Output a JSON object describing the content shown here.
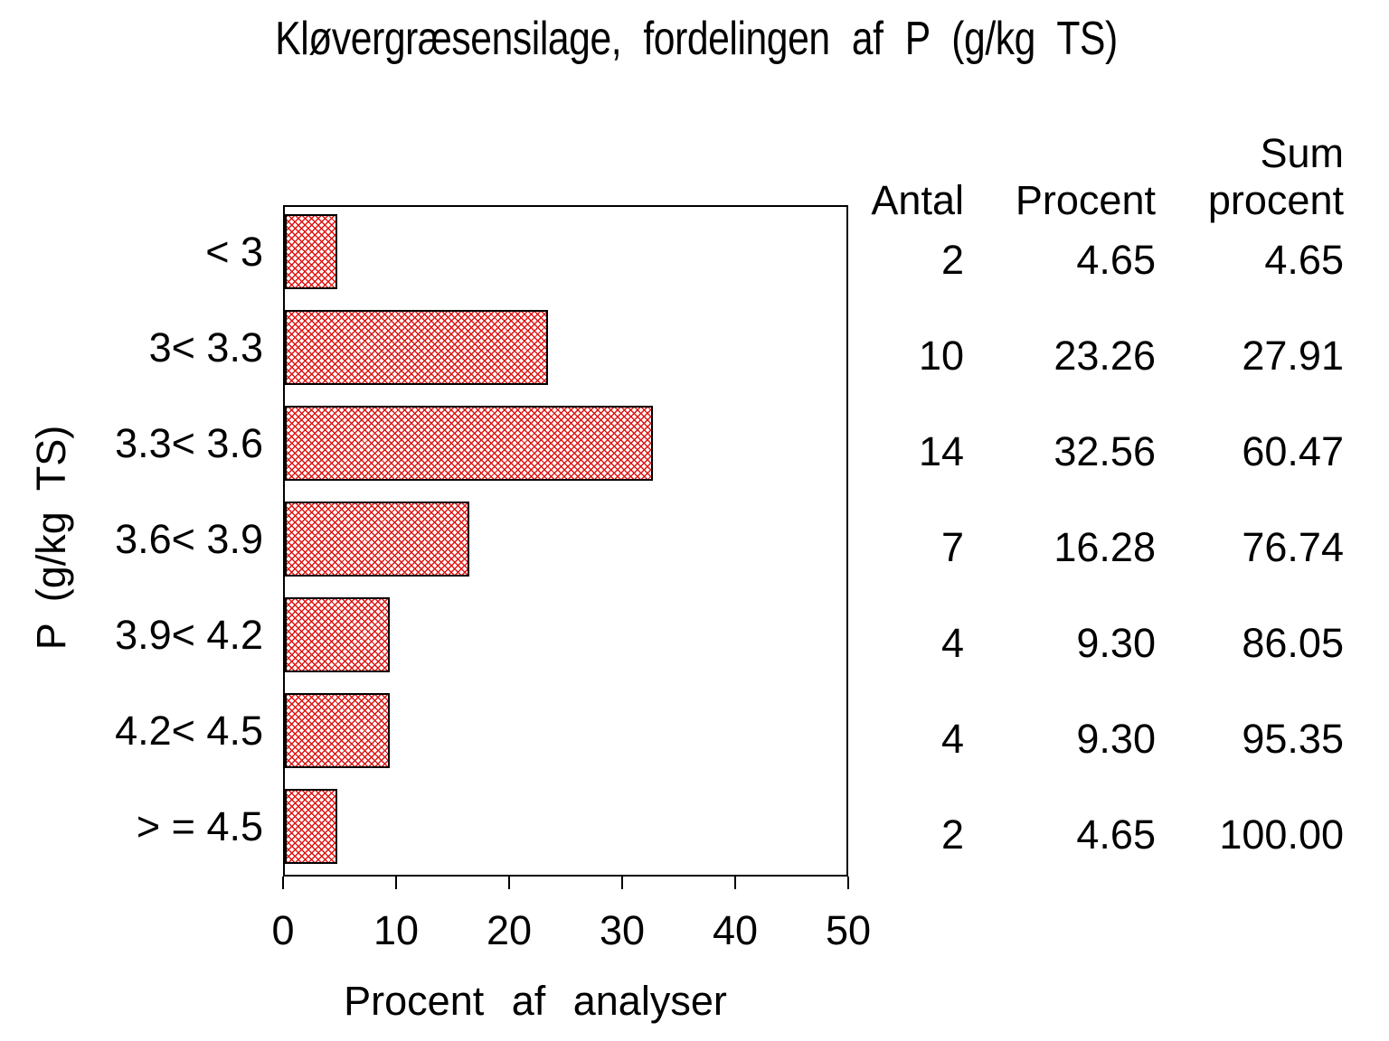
{
  "chart_data": {
    "type": "bar",
    "orientation": "horizontal",
    "title": "Kløvergræsensilage, fordelingen af P (g/kg TS)",
    "xlabel": "Procent af analyser",
    "ylabel": "P (g/kg TS)",
    "xlim": [
      0,
      50
    ],
    "xticks": [
      0,
      10,
      20,
      30,
      40,
      50
    ],
    "grid": false,
    "legend": "none",
    "bar_pattern": "diagonal-crosshatch",
    "categories": [
      "< 3",
      "3< 3.3",
      "3.3< 3.6",
      "3.6< 3.9",
      "3.9< 4.2",
      "4.2< 4.5",
      "> = 4.5"
    ],
    "values": [
      4.65,
      23.26,
      32.56,
      16.28,
      9.3,
      9.3,
      4.65
    ],
    "colors": {
      "hatch_red": "#dd1512",
      "frame_black": "#000000",
      "background": "#ffffff"
    },
    "stats_table": {
      "headers": [
        "Antal",
        "Procent",
        "Sum procent"
      ],
      "header_display": {
        "antal": "Antal",
        "procent": "Procent",
        "sum_line1": "Sum",
        "sum_line2": "procent"
      },
      "rows": [
        {
          "antal": "2",
          "procent": "4.65",
          "sum_procent": "4.65"
        },
        {
          "antal": "10",
          "procent": "23.26",
          "sum_procent": "27.91"
        },
        {
          "antal": "14",
          "procent": "32.56",
          "sum_procent": "60.47"
        },
        {
          "antal": "7",
          "procent": "16.28",
          "sum_procent": "76.74"
        },
        {
          "antal": "4",
          "procent": "9.30",
          "sum_procent": "86.05"
        },
        {
          "antal": "4",
          "procent": "9.30",
          "sum_procent": "95.35"
        },
        {
          "antal": "2",
          "procent": "4.65",
          "sum_procent": "100.00"
        }
      ]
    }
  }
}
